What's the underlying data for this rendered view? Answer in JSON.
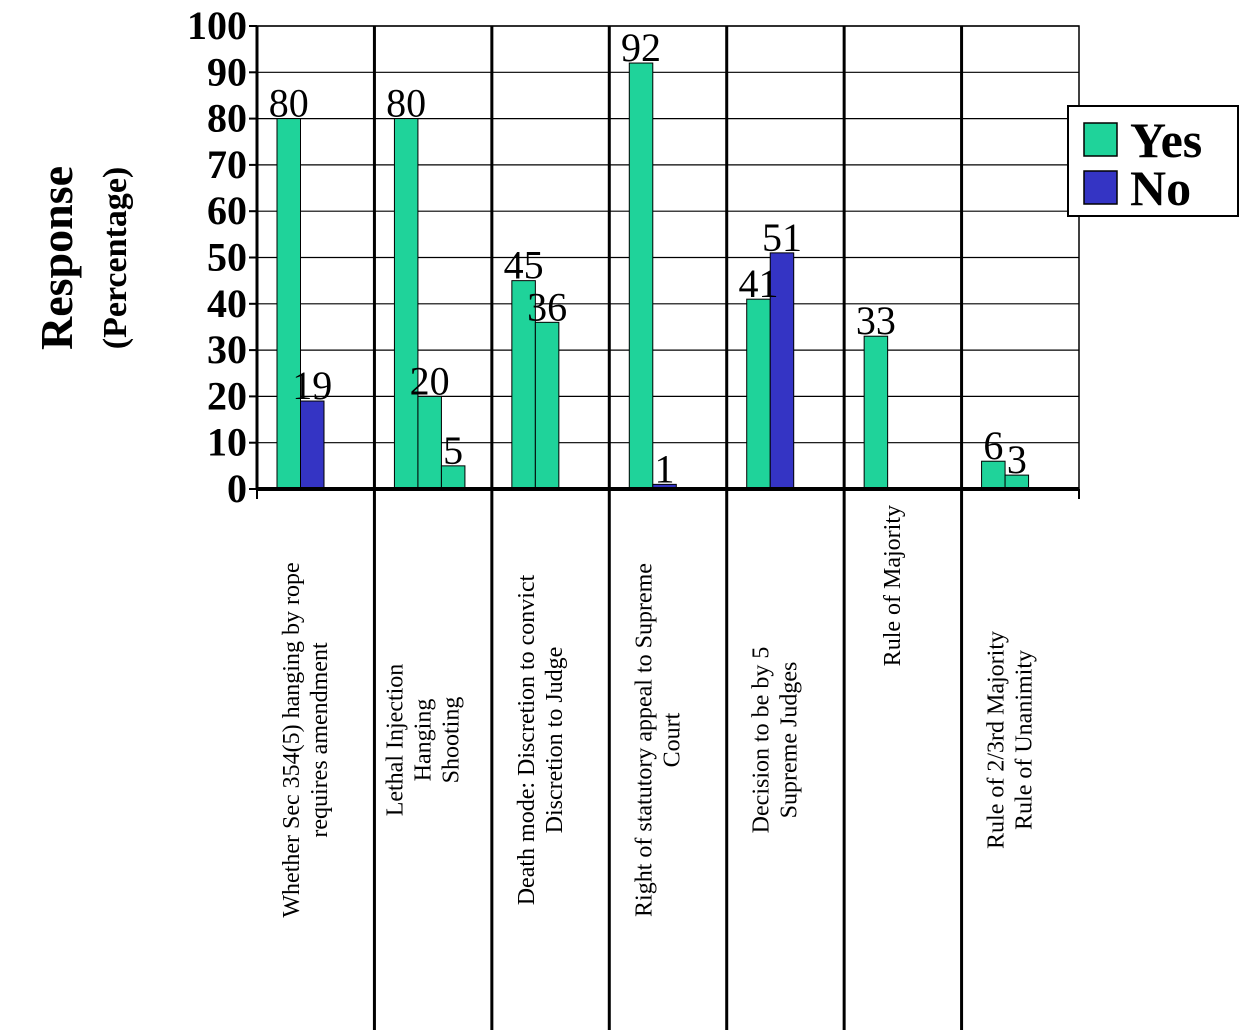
{
  "chart_data": {
    "type": "bar",
    "ylabel": "Response",
    "ylabel_sub": "(Percentage)",
    "ylim": [
      0,
      100
    ],
    "yticks": [
      0,
      10,
      20,
      30,
      40,
      50,
      60,
      70,
      80,
      90,
      100
    ],
    "grid": true,
    "legend_position": "right",
    "legend": [
      {
        "name": "Yes",
        "color": "#1fd39a"
      },
      {
        "name": "No",
        "color": "#3434c4"
      }
    ],
    "groups": [
      {
        "label_lines": [
          "Whether Sec 354(5) hanging by rope",
          "requires amendment"
        ],
        "bars": [
          {
            "value": 80,
            "series": "Yes"
          },
          {
            "value": 19,
            "series": "No"
          }
        ]
      },
      {
        "label_lines": [
          "Lethal Injection",
          "Hanging",
          "Shooting"
        ],
        "bars": [
          {
            "value": 80,
            "series": "Yes"
          },
          {
            "value": 20,
            "series": "Yes"
          },
          {
            "value": 5,
            "series": "Yes"
          }
        ]
      },
      {
        "label_lines": [
          "Death mode: Discretion to convict",
          "Discretion to Judge"
        ],
        "bars": [
          {
            "value": 45,
            "series": "Yes"
          },
          {
            "value": 36,
            "series": "Yes"
          }
        ]
      },
      {
        "label_lines": [
          "Right of statutory appeal to Supreme",
          "Court"
        ],
        "bars": [
          {
            "value": 92,
            "series": "Yes"
          },
          {
            "value": 1,
            "series": "No"
          }
        ]
      },
      {
        "label_lines": [
          "Decision to be by 5",
          "Supreme Judges"
        ],
        "bars": [
          {
            "value": 41,
            "series": "Yes"
          },
          {
            "value": 51,
            "series": "No"
          }
        ]
      },
      {
        "label_lines": [
          "Rule of Majority"
        ],
        "bars": [
          {
            "value": 33,
            "series": "Yes"
          }
        ]
      },
      {
        "label_lines": [
          "Rule of 2/3rd Majority",
          "Rule of Unanimity"
        ],
        "bars": [
          {
            "value": 6,
            "series": "Yes"
          },
          {
            "value": 3,
            "series": "Yes"
          }
        ]
      }
    ]
  }
}
